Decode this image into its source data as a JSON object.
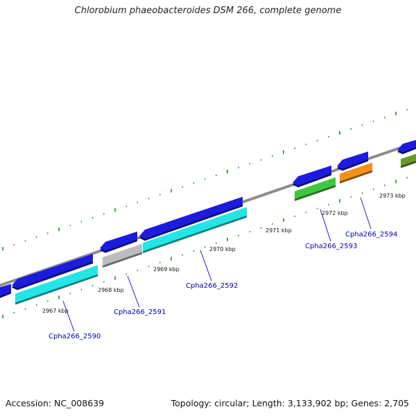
{
  "title": "Chlorobium phaeobacteroides DSM 266, complete genome",
  "footer": {
    "accession": "Accession: NC_008639",
    "summary": "Topology: circular; Length: 3,133,902 bp; Genes: 2,705"
  },
  "scale_labels": [
    "2967 kbp",
    "2968 kbp",
    "2969 kbp",
    "2970 kbp",
    "2971 kbp",
    "2972 kbp",
    "2973 kbp"
  ],
  "gene_labels": [
    "Cpha266_2590",
    "Cpha266_2591",
    "Cpha266_2592",
    "Cpha266_2593",
    "Cpha266_2594"
  ],
  "colors": {
    "backbone": "#8c8c8c",
    "cds": "#1c1cde",
    "cyan": "#22e6e6",
    "gray": "#bdbdbd",
    "green": "#3ec83e",
    "orange": "#f49018",
    "olive": "#6a9a2a",
    "ticks": "#1f8a1f",
    "label_line": "#1a1ad0"
  }
}
